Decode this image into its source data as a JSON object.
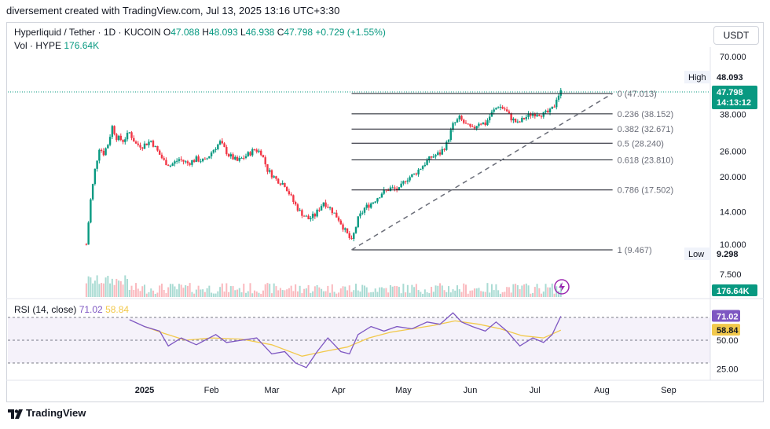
{
  "credit_line": "diversement created with TradingView.com, Jul 13, 2025 13:16 UTC+3:30",
  "legend": {
    "symbol": "Hyperliquid / Tether · 1D · KUCOIN",
    "open_label": "O",
    "open": "47.088",
    "high_label": "H",
    "high": "48.093",
    "low_label": "L",
    "low": "46.938",
    "close_label": "C",
    "close": "47.798",
    "change": "+0.729 (+1.55%)",
    "vol_label": "Vol · HYPE",
    "vol": "176.64K"
  },
  "currency": "USDT",
  "rsi_legend": {
    "label": "RSI (14, close)",
    "rsi": "71.02",
    "ma": "58.84"
  },
  "footer": {
    "brand": "TradingView",
    "icon": "tradingview-logo-icon"
  },
  "colors": {
    "up": "#089981",
    "down": "#f23645",
    "rsi": "#7e57c2",
    "rsi_ma": "#f2c94c",
    "fib": "#131722"
  },
  "chart_data": {
    "type": "candlestick",
    "price_axis": {
      "scale": "log",
      "ticks": [
        "70.000",
        "38.000",
        "26.000",
        "20.000",
        "14.000",
        "10.000",
        "7.500"
      ],
      "tick_values": [
        70,
        38,
        26,
        20,
        14,
        10,
        7.5
      ]
    },
    "time_axis": {
      "ticks": [
        "2025",
        "Feb",
        "Mar",
        "Apr",
        "May",
        "Jun",
        "Jul",
        "Aug",
        "Sep"
      ],
      "tick_dates": [
        "2025-01-01",
        "2025-02-01",
        "2025-03-01",
        "2025-04-01",
        "2025-05-01",
        "2025-06-01",
        "2025-07-01",
        "2025-08-01",
        "2025-09-01"
      ]
    },
    "price_labels": [
      {
        "name": "High",
        "value": "48.093"
      },
      {
        "name": "current",
        "value": "47.798",
        "sub": "14:13:12"
      },
      {
        "name": "Low",
        "value": "9.298"
      },
      {
        "name": "volume",
        "value": "176.64K"
      }
    ],
    "fibonacci": {
      "start_date": "2025-04-07",
      "end_date": "2025-08-06",
      "levels": [
        {
          "ratio": "0",
          "price": 47.013,
          "label": "0 (47.013)"
        },
        {
          "ratio": "0.236",
          "price": 38.152,
          "label": "0.236 (38.152)"
        },
        {
          "ratio": "0.382",
          "price": 32.671,
          "label": "0.382 (32.671)"
        },
        {
          "ratio": "0.5",
          "price": 28.24,
          "label": "0.5 (28.240)"
        },
        {
          "ratio": "0.618",
          "price": 23.81,
          "label": "0.618 (23.810)"
        },
        {
          "ratio": "0.786",
          "price": 17.502,
          "label": "0.786 (17.502)"
        },
        {
          "ratio": "1",
          "price": 9.467,
          "label": "1 (9.467)"
        }
      ],
      "trend_line": {
        "from": [
          "2025-04-07",
          9.467
        ],
        "to": [
          "2025-08-06",
          47.013
        ]
      }
    },
    "price_path": [
      [
        "2024-12-05",
        10.0
      ],
      [
        "2024-12-07",
        15.8
      ],
      [
        "2024-12-09",
        21.5
      ],
      [
        "2024-12-11",
        27.0
      ],
      [
        "2024-12-13",
        25.5
      ],
      [
        "2024-12-15",
        28.0
      ],
      [
        "2024-12-17",
        33.5
      ],
      [
        "2024-12-19",
        30.0
      ],
      [
        "2024-12-22",
        29.0
      ],
      [
        "2024-12-25",
        31.5
      ],
      [
        "2024-12-28",
        28.0
      ],
      [
        "2024-12-31",
        27.5
      ],
      [
        "2025-01-04",
        29.0
      ],
      [
        "2025-01-07",
        26.0
      ],
      [
        "2025-01-10",
        23.5
      ],
      [
        "2025-01-13",
        22.5
      ],
      [
        "2025-01-17",
        24.0
      ],
      [
        "2025-01-21",
        23.0
      ],
      [
        "2025-01-25",
        24.0
      ],
      [
        "2025-01-29",
        23.5
      ],
      [
        "2025-02-02",
        26.5
      ],
      [
        "2025-02-05",
        28.5
      ],
      [
        "2025-02-09",
        25.0
      ],
      [
        "2025-02-13",
        23.5
      ],
      [
        "2025-02-17",
        24.8
      ],
      [
        "2025-02-21",
        26.5
      ],
      [
        "2025-02-24",
        25.8
      ],
      [
        "2025-02-27",
        21.5
      ],
      [
        "2025-03-03",
        19.5
      ],
      [
        "2025-03-07",
        18.5
      ],
      [
        "2025-03-11",
        15.5
      ],
      [
        "2025-03-14",
        14.0
      ],
      [
        "2025-03-18",
        13.0
      ],
      [
        "2025-03-21",
        13.5
      ],
      [
        "2025-03-25",
        15.5
      ],
      [
        "2025-03-28",
        14.5
      ],
      [
        "2025-04-01",
        13.0
      ],
      [
        "2025-04-04",
        11.5
      ],
      [
        "2025-04-07",
        10.3
      ],
      [
        "2025-04-10",
        13.0
      ],
      [
        "2025-04-13",
        14.5
      ],
      [
        "2025-04-17",
        15.5
      ],
      [
        "2025-04-21",
        17.0
      ],
      [
        "2025-04-25",
        17.8
      ],
      [
        "2025-04-29",
        17.5
      ],
      [
        "2025-05-02",
        19.5
      ],
      [
        "2025-05-06",
        20.5
      ],
      [
        "2025-05-10",
        22.5
      ],
      [
        "2025-05-14",
        24.5
      ],
      [
        "2025-05-18",
        25.5
      ],
      [
        "2025-05-21",
        28.0
      ],
      [
        "2025-05-24",
        34.0
      ],
      [
        "2025-05-27",
        36.5
      ],
      [
        "2025-05-30",
        34.0
      ],
      [
        "2025-06-02",
        32.5
      ],
      [
        "2025-06-05",
        35.0
      ],
      [
        "2025-06-08",
        34.5
      ],
      [
        "2025-06-11",
        38.5
      ],
      [
        "2025-06-14",
        41.5
      ],
      [
        "2025-06-17",
        40.0
      ],
      [
        "2025-06-20",
        36.5
      ],
      [
        "2025-06-23",
        34.5
      ],
      [
        "2025-06-26",
        36.5
      ],
      [
        "2025-06-29",
        38.0
      ],
      [
        "2025-07-02",
        38.5
      ],
      [
        "2025-07-05",
        38.0
      ],
      [
        "2025-07-08",
        39.0
      ],
      [
        "2025-07-10",
        41.5
      ],
      [
        "2025-07-11",
        45.0
      ],
      [
        "2025-07-13",
        47.798
      ]
    ],
    "volume_note": "volume histogram, last bar 176.64K",
    "rsi": {
      "ticks": [
        "71.02",
        "58.84",
        "50.00",
        "25.00"
      ],
      "bands": [
        70,
        50,
        30
      ],
      "path": [
        [
          "2024-12-25",
          68
        ],
        [
          "2025-01-01",
          62
        ],
        [
          "2025-01-08",
          58
        ],
        [
          "2025-01-12",
          45
        ],
        [
          "2025-01-18",
          52
        ],
        [
          "2025-01-25",
          46
        ],
        [
          "2025-02-03",
          55
        ],
        [
          "2025-02-08",
          48
        ],
        [
          "2025-02-15",
          50
        ],
        [
          "2025-02-22",
          52
        ],
        [
          "2025-03-01",
          38
        ],
        [
          "2025-03-07",
          40
        ],
        [
          "2025-03-12",
          30
        ],
        [
          "2025-03-17",
          26
        ],
        [
          "2025-03-22",
          40
        ],
        [
          "2025-03-27",
          52
        ],
        [
          "2025-04-02",
          40
        ],
        [
          "2025-04-06",
          38
        ],
        [
          "2025-04-10",
          55
        ],
        [
          "2025-04-16",
          62
        ],
        [
          "2025-04-22",
          58
        ],
        [
          "2025-04-28",
          62
        ],
        [
          "2025-05-05",
          60
        ],
        [
          "2025-05-12",
          66
        ],
        [
          "2025-05-18",
          64
        ],
        [
          "2025-05-24",
          74
        ],
        [
          "2025-05-28",
          66
        ],
        [
          "2025-06-02",
          62
        ],
        [
          "2025-06-08",
          58
        ],
        [
          "2025-06-13",
          66
        ],
        [
          "2025-06-18",
          58
        ],
        [
          "2025-06-24",
          45
        ],
        [
          "2025-06-30",
          52
        ],
        [
          "2025-07-05",
          48
        ],
        [
          "2025-07-09",
          55
        ],
        [
          "2025-07-13",
          71.02
        ]
      ],
      "ma_path": [
        [
          "2025-01-01",
          62
        ],
        [
          "2025-01-10",
          56
        ],
        [
          "2025-01-20",
          50
        ],
        [
          "2025-02-01",
          52
        ],
        [
          "2025-02-15",
          51
        ],
        [
          "2025-03-01",
          46
        ],
        [
          "2025-03-15",
          36
        ],
        [
          "2025-03-25",
          40
        ],
        [
          "2025-04-05",
          44
        ],
        [
          "2025-04-15",
          52
        ],
        [
          "2025-04-25",
          57
        ],
        [
          "2025-05-05",
          60
        ],
        [
          "2025-05-15",
          63
        ],
        [
          "2025-05-25",
          67
        ],
        [
          "2025-06-05",
          64
        ],
        [
          "2025-06-15",
          60
        ],
        [
          "2025-06-25",
          54
        ],
        [
          "2025-07-05",
          52
        ],
        [
          "2025-07-13",
          58.84
        ]
      ]
    }
  }
}
